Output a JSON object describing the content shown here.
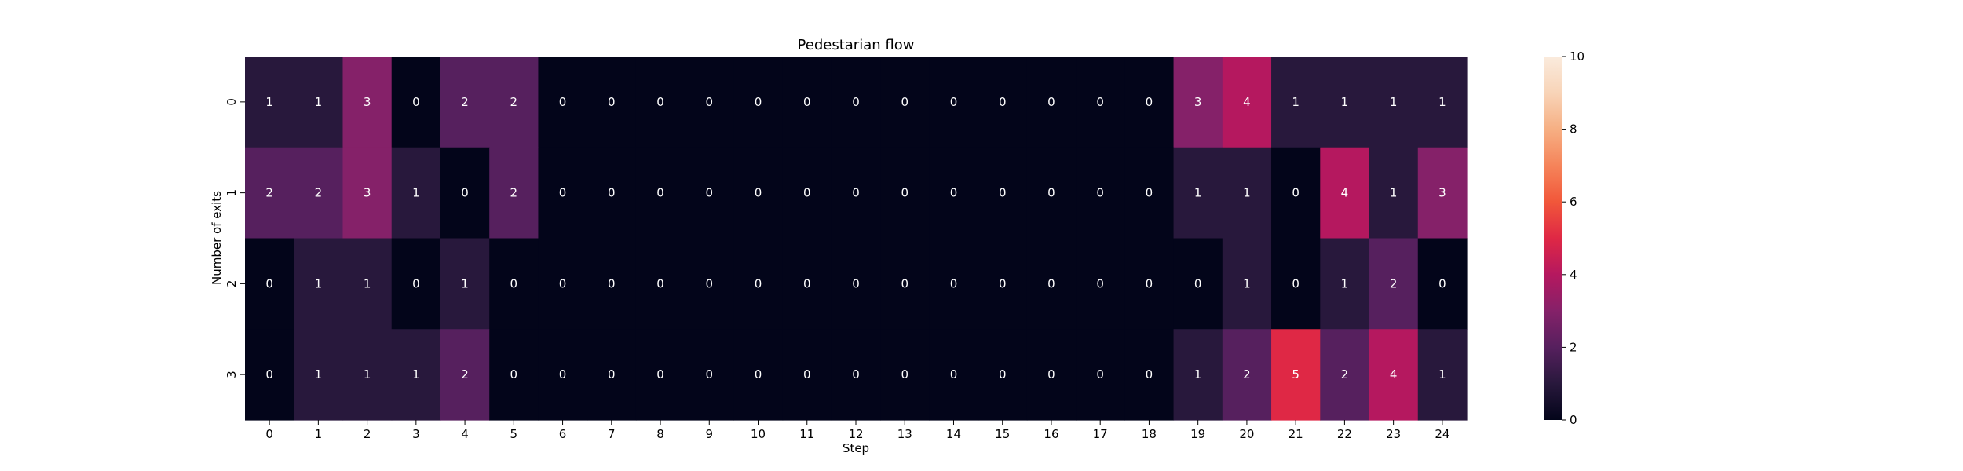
{
  "chart_data": {
    "type": "heatmap",
    "title": "Pedestarian flow",
    "xlabel": "Step",
    "ylabel": "Number of exits",
    "x_categories": [
      "0",
      "1",
      "2",
      "3",
      "4",
      "5",
      "6",
      "7",
      "8",
      "9",
      "10",
      "11",
      "12",
      "13",
      "14",
      "15",
      "16",
      "17",
      "18",
      "19",
      "20",
      "21",
      "22",
      "23",
      "24"
    ],
    "y_categories": [
      "0",
      "1",
      "2",
      "3"
    ],
    "values": [
      [
        1,
        1,
        3,
        0,
        2,
        2,
        0,
        0,
        0,
        0,
        0,
        0,
        0,
        0,
        0,
        0,
        0,
        0,
        0,
        3,
        4,
        1,
        1,
        1,
        1
      ],
      [
        2,
        2,
        3,
        1,
        0,
        2,
        0,
        0,
        0,
        0,
        0,
        0,
        0,
        0,
        0,
        0,
        0,
        0,
        0,
        1,
        1,
        0,
        4,
        1,
        3
      ],
      [
        0,
        1,
        1,
        0,
        1,
        0,
        0,
        0,
        0,
        0,
        0,
        0,
        0,
        0,
        0,
        0,
        0,
        0,
        0,
        0,
        1,
        0,
        1,
        2,
        0
      ],
      [
        0,
        1,
        1,
        1,
        2,
        0,
        0,
        0,
        0,
        0,
        0,
        0,
        0,
        0,
        0,
        0,
        0,
        0,
        0,
        1,
        2,
        5,
        2,
        4,
        1
      ]
    ],
    "vmin": 0,
    "vmax": 10,
    "colorbar_ticks": [
      "0",
      "2",
      "4",
      "6",
      "8",
      "10"
    ],
    "colormap": "rocket",
    "annotations": true
  }
}
